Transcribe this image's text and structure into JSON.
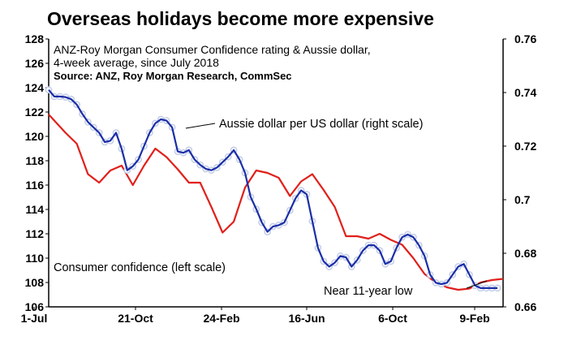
{
  "chart_data": {
    "type": "line",
    "title": "Overseas holidays become more expensive",
    "subtitle_lines": [
      "ANZ-Roy Morgan Consumer Confidence rating & Aussie dollar,",
      "4-week average, since July 2018"
    ],
    "source": "Source: ANZ, Roy Morgan Research, CommSec",
    "x_tick_labels": [
      "1-Jul",
      "21-Oct",
      "24-Feb",
      "16-Jun",
      "6-Oct",
      "9-Feb"
    ],
    "left_axis": {
      "ylim": [
        106,
        128
      ],
      "ticks": [
        "106",
        "108",
        "110",
        "112",
        "114",
        "116",
        "118",
        "120",
        "122",
        "124",
        "126",
        "128"
      ]
    },
    "right_axis": {
      "ylim": [
        0.66,
        0.76
      ],
      "ticks": [
        "0.66",
        "0.68",
        "0.7",
        "0.72",
        "0.74",
        "0.76"
      ]
    },
    "grid": false,
    "series": [
      {
        "name": "Consumer confidence (left scale)",
        "axis": "left",
        "color": "#e0201b",
        "x": [
          0,
          3,
          5,
          7,
          9,
          11,
          13,
          15,
          17,
          19,
          21,
          23,
          25,
          27,
          29,
          31,
          33,
          35,
          37,
          39,
          41,
          43,
          45,
          47,
          49,
          51,
          53,
          55,
          57,
          59,
          61,
          63,
          65,
          67,
          69,
          71,
          73,
          75,
          77,
          79,
          81
        ],
        "values": [
          121.8,
          120.3,
          119.4,
          116.9,
          116.2,
          117.2,
          117.6,
          116.0,
          117.6,
          119.0,
          118.3,
          117.3,
          116.2,
          116.2,
          114.2,
          112.1,
          113.0,
          115.8,
          117.2,
          117.0,
          116.6,
          115.1,
          116.3,
          116.9,
          115.6,
          114.2,
          111.8,
          111.8,
          111.6,
          112.0,
          111.5,
          111.1,
          110.0,
          108.7,
          108.0,
          107.6,
          107.4,
          107.5,
          108.0,
          108.2,
          108.3
        ]
      },
      {
        "name": "Aussie dollar per US dollar (right scale)",
        "axis": "right",
        "color": "#1a2ea8",
        "marker_color": "#c6cfe8",
        "x": [
          0,
          1,
          2,
          3,
          4,
          5,
          6,
          7,
          8,
          9,
          10,
          11,
          12,
          13,
          14,
          15,
          16,
          17,
          18,
          19,
          20,
          21,
          22,
          23,
          24,
          25,
          26,
          27,
          28,
          29,
          30,
          31,
          32,
          33,
          34,
          35,
          36,
          37,
          38,
          39,
          40,
          41,
          42,
          43,
          44,
          45,
          46,
          47,
          48,
          49,
          50,
          51,
          52,
          53,
          54,
          55,
          56,
          57,
          58,
          59,
          60,
          61,
          62,
          63,
          64,
          65,
          66,
          67,
          68,
          69,
          70,
          71,
          72,
          73,
          74,
          75,
          76,
          77,
          78,
          79,
          80
        ],
        "values": [
          0.741,
          0.7385,
          0.7385,
          0.7383,
          0.7375,
          0.7355,
          0.732,
          0.729,
          0.727,
          0.725,
          0.7215,
          0.722,
          0.725,
          0.719,
          0.711,
          0.7125,
          0.715,
          0.72,
          0.725,
          0.7285,
          0.73,
          0.7295,
          0.727,
          0.718,
          0.7175,
          0.7185,
          0.715,
          0.713,
          0.7115,
          0.711,
          0.712,
          0.714,
          0.716,
          0.7185,
          0.715,
          0.71,
          0.701,
          0.6965,
          0.6915,
          0.688,
          0.69,
          0.6905,
          0.6915,
          0.696,
          0.7005,
          0.7035,
          0.702,
          0.692,
          0.682,
          0.677,
          0.675,
          0.6765,
          0.679,
          0.6785,
          0.675,
          0.6775,
          0.681,
          0.683,
          0.683,
          0.681,
          0.676,
          0.677,
          0.682,
          0.686,
          0.687,
          0.686,
          0.683,
          0.679,
          0.672,
          0.669,
          0.6685,
          0.669,
          0.672,
          0.675,
          0.676,
          0.672,
          0.668,
          0.667,
          0.667,
          0.667,
          0.667
        ]
      }
    ],
    "annotations": {
      "aud_label": "Aussie dollar per US dollar (right scale)",
      "cc_label": "Consumer confidence (left scale)",
      "low_label": "Near 11-year low"
    },
    "colors": {
      "red": "#e0201b",
      "blue": "#1a2ea8",
      "marker": "#c6cfe8"
    }
  }
}
